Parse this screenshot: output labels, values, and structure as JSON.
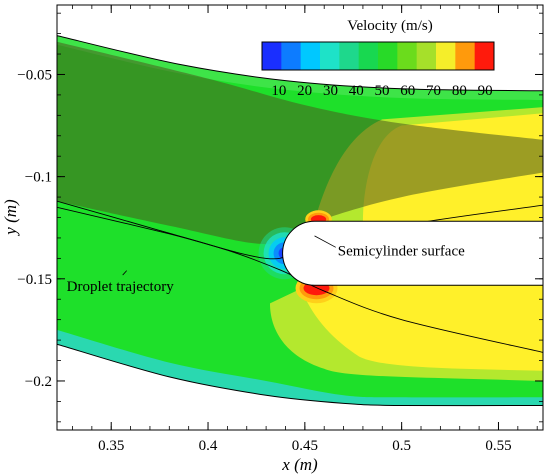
{
  "chart_data": {
    "type": "heatmap",
    "title": "",
    "xlabel": "x (m)",
    "ylabel": "y (m)",
    "xlim": [
      0.322,
      0.573
    ],
    "ylim": [
      -0.224,
      -0.016
    ],
    "x_ticks": [
      0.35,
      0.4,
      0.45,
      0.5,
      0.55
    ],
    "x_tick_labels": [
      "0.35",
      "0.4",
      "0.45",
      "0.5",
      "0.55"
    ],
    "y_ticks": [
      -0.05,
      -0.1,
      -0.15,
      -0.2
    ],
    "y_tick_labels": [
      "−0.05",
      "−0.1",
      "−0.15",
      "−0.2"
    ],
    "grid": false,
    "legend": {
      "title": "Velocity (m/s)",
      "placement": "top-right",
      "levels": [
        5,
        10,
        15,
        20,
        25,
        30,
        35,
        40,
        45,
        50,
        55,
        60,
        65,
        70,
        75,
        80,
        85,
        90,
        95
      ],
      "tick_values": [
        10,
        20,
        30,
        40,
        50,
        60,
        70,
        80,
        90
      ],
      "tick_labels": [
        "10",
        "20",
        "30",
        "40",
        "50",
        "60",
        "70",
        "80",
        "90"
      ],
      "colors": [
        "#1a2fff",
        "#0d7cff",
        "#00c8ff",
        "#1ee2c8",
        "#1ed88c",
        "#18d850",
        "#28da28",
        "#6bdc1c",
        "#a6e02a",
        "#f5ee2a",
        "#ff9a0c",
        "#ff1a0c"
      ]
    },
    "annotations": [
      {
        "text": "Semicylinder surface",
        "x": 0.467,
        "y": -0.1385,
        "target": [
          0.455,
          -0.129
        ]
      },
      {
        "text": "Droplet trajectory",
        "x": 0.327,
        "y": -0.156,
        "target": [
          0.358,
          -0.146
        ]
      }
    ],
    "semicylinder": {
      "center_x": 0.455,
      "center_y": -0.1375,
      "radius": 0.0165,
      "right_edge_x": 0.573
    },
    "domain_top_boundary": {
      "x": [
        0.322,
        0.385,
        0.44,
        0.5,
        0.573
      ],
      "y": [
        -0.031,
        -0.045,
        -0.053,
        -0.057,
        -0.058
      ]
    },
    "domain_bottom_boundary": {
      "x": [
        0.322,
        0.38,
        0.43,
        0.47,
        0.5,
        0.573
      ],
      "y": [
        -0.182,
        -0.198,
        -0.207,
        -0.211,
        -0.212,
        -0.212
      ]
    },
    "trajectory_bundle": {
      "upper": {
        "x": [
          0.322,
          0.4,
          0.45,
          0.5,
          0.573
        ],
        "y": [
          -0.034,
          -0.052,
          -0.065,
          -0.074,
          -0.082
        ],
        "stroke": "#5a4e1c"
      },
      "lower": {
        "x": [
          0.322,
          0.38,
          0.43,
          0.45,
          0.5,
          0.573
        ],
        "y": [
          -0.112,
          -0.124,
          -0.133,
          -0.124,
          -0.11,
          -0.098
        ],
        "stroke": "#5a4e1c"
      },
      "line_count": 26
    },
    "droplet_trajectories": [
      {
        "x": [
          0.322,
          0.37,
          0.41,
          0.438,
          0.46,
          0.5,
          0.573
        ],
        "y": [
          -0.112,
          -0.125,
          -0.136,
          -0.146,
          -0.156,
          -0.17,
          -0.186
        ]
      },
      {
        "x": [
          0.322,
          0.38,
          0.43,
          0.45,
          0.5,
          0.573
        ],
        "y": [
          -0.115,
          -0.128,
          -0.14,
          -0.135,
          -0.124,
          -0.114
        ]
      }
    ],
    "velocity_regions": [
      {
        "name": "free-stream",
        "value": 55,
        "color": "#1ee02a"
      },
      {
        "name": "wake-upper",
        "value": 75,
        "color": "#fff02a"
      },
      {
        "name": "wake-lower",
        "value": 75,
        "color": "#fff02a"
      },
      {
        "name": "stagnation",
        "value": 5,
        "color": "#1a2fff"
      },
      {
        "name": "edge-top",
        "value": 90,
        "color": "#ff1a0c"
      },
      {
        "name": "edge-bottom",
        "value": 90,
        "color": "#ff1a0c"
      },
      {
        "name": "boundary-layer",
        "value": 30,
        "color": "#28ddd0"
      }
    ]
  }
}
